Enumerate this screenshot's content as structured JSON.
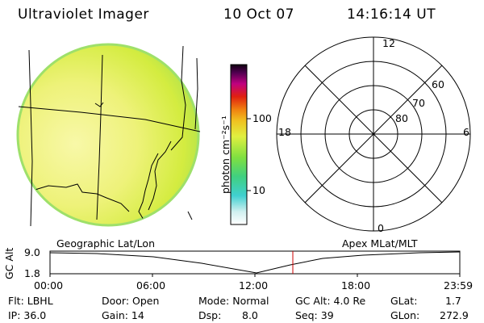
{
  "header": {
    "title": "Ultraviolet Imager",
    "date": "10 Oct 07",
    "time": "14:16:14 UT"
  },
  "colorbar": {
    "label": "photon cm⁻²s⁻¹",
    "ticks": [
      "100",
      "10"
    ]
  },
  "polar": {
    "mlt_labels": [
      "12",
      "18",
      "6",
      "0"
    ],
    "lat_labels": [
      "60",
      "70",
      "80"
    ]
  },
  "timeline": {
    "left_caption": "Geographic Lat/Lon",
    "right_caption": "Apex MLat/MLT",
    "axis_title": "GC Alt",
    "y_top": "9.0",
    "y_bottom": "1.8",
    "times": [
      "00:00",
      "06:00",
      "12:00",
      "18:00",
      "23:59"
    ],
    "cursor_time": "14:16"
  },
  "footer": {
    "row1": {
      "flt": "Flt: LBHL",
      "door": "Door: Open",
      "mode": "Mode: Normal",
      "gc_alt": "GC Alt: 4.0 Re",
      "glat_label": "GLat:",
      "glat_value": "1.7"
    },
    "row2": {
      "ip": "IP: 36.0",
      "gain": "Gain: 14",
      "dsp_label": "Dsp:",
      "dsp_value": "8.0",
      "seq": "Seq: 39",
      "glon_label": "GLon:",
      "glon_value": "272.9"
    }
  },
  "colors": {
    "disk_center": "#f7f79a",
    "disk_mid": "#e6f04a",
    "disk_edge": "#9be04a",
    "cursor": "#cc0000"
  }
}
